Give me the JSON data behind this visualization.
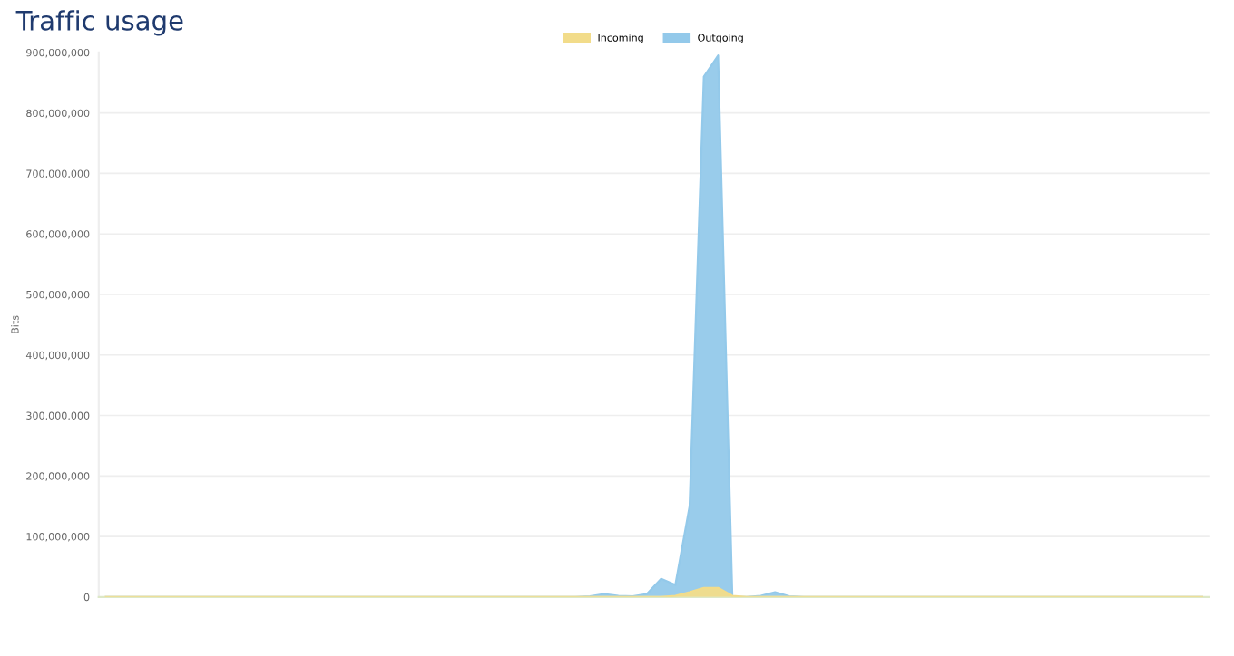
{
  "chart_data": {
    "type": "area",
    "title": "Traffic usage",
    "ylabel": "Bits",
    "categories": [
      null,
      null,
      null,
      null,
      null,
      null,
      null,
      null,
      null,
      null,
      null,
      null,
      null,
      null,
      null,
      null,
      null,
      null,
      null,
      null,
      null,
      null,
      null,
      null,
      null,
      null,
      null,
      null,
      null,
      null,
      null,
      null,
      null,
      null,
      null,
      null,
      null,
      null,
      null,
      null,
      null,
      null,
      null,
      null,
      null,
      null,
      null,
      null,
      null,
      null,
      null,
      null,
      null,
      null,
      null,
      null,
      null,
      null,
      null,
      null,
      null,
      null,
      null,
      null,
      null,
      null,
      null,
      null,
      null,
      null,
      null,
      null,
      null,
      null,
      null,
      null,
      null,
      null
    ],
    "series": [
      {
        "name": "Outgoing",
        "color": "#93c9ea",
        "values": [
          0,
          0,
          0,
          0,
          0,
          0,
          0,
          0,
          0,
          0,
          0,
          0,
          0,
          0,
          0,
          0,
          0,
          0,
          0,
          0,
          0,
          0,
          0,
          0,
          0,
          0,
          0,
          0,
          0,
          0,
          0,
          0,
          0,
          0,
          1000000,
          5000000,
          2000000,
          1000000,
          5000000,
          30000000,
          20000000,
          150000000,
          860000000,
          895000000,
          0,
          0,
          2000000,
          8000000,
          1000000,
          0,
          0,
          0,
          0,
          0,
          0,
          0,
          0,
          0,
          0,
          0,
          0,
          0,
          0,
          0,
          0,
          0,
          0,
          0,
          0,
          0,
          0,
          0,
          0,
          0,
          0,
          0,
          0,
          0
        ]
      },
      {
        "name": "Incoming",
        "color": "#f2dc8a",
        "values": [
          0,
          0,
          0,
          0,
          0,
          0,
          0,
          0,
          0,
          0,
          0,
          0,
          0,
          0,
          0,
          0,
          0,
          0,
          0,
          0,
          0,
          0,
          0,
          0,
          0,
          0,
          0,
          0,
          0,
          0,
          0,
          0,
          0,
          0,
          0,
          0,
          0,
          0,
          0,
          0,
          2000000,
          8000000,
          15000000,
          15000000,
          2000000,
          0,
          0,
          0,
          0,
          0,
          0,
          0,
          0,
          0,
          0,
          0,
          0,
          0,
          0,
          0,
          0,
          0,
          0,
          0,
          0,
          0,
          0,
          0,
          0,
          0,
          0,
          0,
          0,
          0,
          0,
          0,
          0,
          0
        ]
      }
    ],
    "ylim": [
      0,
      900000000
    ],
    "yticks": [
      {
        "value": 0,
        "label": "0"
      },
      {
        "value": 100000000,
        "label": "100,000,000"
      },
      {
        "value": 200000000,
        "label": "200,000,000"
      },
      {
        "value": 300000000,
        "label": "300,000,000"
      },
      {
        "value": 400000000,
        "label": "400,000,000"
      },
      {
        "value": 500000000,
        "label": "500,000,000"
      },
      {
        "value": 600000000,
        "label": "600,000,000"
      },
      {
        "value": 700000000,
        "label": "700,000,000"
      },
      {
        "value": 800000000,
        "label": "800,000,000"
      },
      {
        "value": 900000000,
        "label": "900,000,000"
      }
    ],
    "grid": "y",
    "legend": "top"
  }
}
